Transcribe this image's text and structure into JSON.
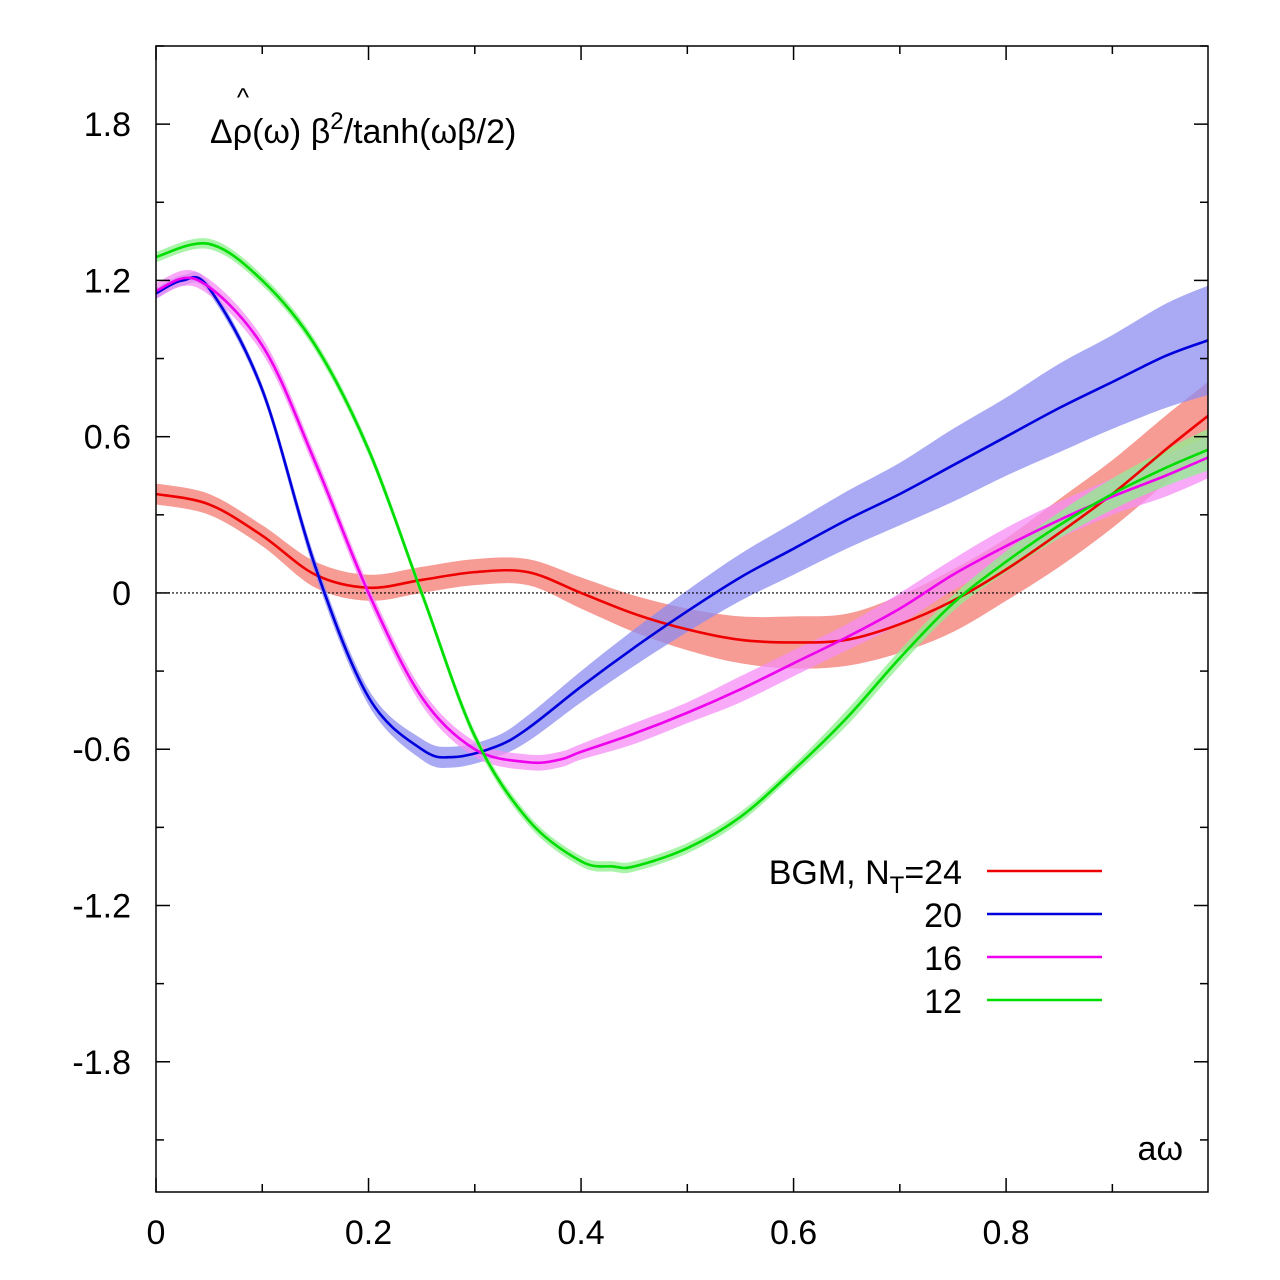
{
  "chart_data": {
    "type": "line",
    "title": "",
    "ylabel": {
      "prefix": "Δ",
      "hat": "^",
      "rho": "ρ",
      "mid": "(ω) β",
      "sup": "2",
      "suffix": "/tanh(ωβ/2)"
    },
    "xlabel": "aω",
    "xlim": [
      0,
      0.99
    ],
    "ylim": [
      -2.3,
      2.1
    ],
    "xticks": [
      0,
      0.2,
      0.4,
      0.6,
      0.8
    ],
    "xtick_labels": [
      "0",
      "0.2",
      "0.4",
      "0.6",
      "0.8"
    ],
    "xminor": [
      0.1,
      0.3,
      0.5,
      0.7,
      0.9
    ],
    "yticks": [
      1.8,
      1.2,
      0.6,
      0,
      -0.6,
      -1.2,
      -1.8
    ],
    "ytick_labels": [
      "1.8",
      "1.2",
      "0.6",
      "0",
      "-0.6",
      "-1.2",
      "-1.8"
    ],
    "yminor": [
      2.1,
      1.5,
      0.9,
      0.3,
      -0.3,
      -0.9,
      -1.5,
      -2.1
    ],
    "zero_line": true,
    "legend": {
      "placement": "bottom-right",
      "prefix": "BGM, N",
      "subscript": "T",
      "first_suffix": "=24"
    },
    "series": [
      {
        "name": "24",
        "label": "BGM, NT=24",
        "color": "#ee0000",
        "band_color": "#f47a72",
        "x": [
          0,
          0.05,
          0.1,
          0.15,
          0.2,
          0.25,
          0.3,
          0.35,
          0.4,
          0.45,
          0.5,
          0.55,
          0.6,
          0.65,
          0.7,
          0.75,
          0.8,
          0.85,
          0.9,
          0.95,
          0.99
        ],
        "y": [
          0.38,
          0.34,
          0.22,
          0.07,
          0.02,
          0.05,
          0.08,
          0.08,
          0.0,
          -0.08,
          -0.14,
          -0.18,
          -0.19,
          -0.18,
          -0.12,
          -0.03,
          0.09,
          0.23,
          0.38,
          0.55,
          0.68
        ],
        "err": [
          0.04,
          0.04,
          0.04,
          0.05,
          0.05,
          0.05,
          0.05,
          0.05,
          0.06,
          0.07,
          0.08,
          0.09,
          0.1,
          0.1,
          0.11,
          0.12,
          0.12,
          0.13,
          0.13,
          0.13,
          0.13
        ]
      },
      {
        "name": "20",
        "label": "20",
        "color": "#0000dd",
        "band_color": "#8c8cf0",
        "x": [
          0,
          0.025,
          0.05,
          0.1,
          0.15,
          0.2,
          0.25,
          0.28,
          0.32,
          0.35,
          0.4,
          0.45,
          0.5,
          0.55,
          0.6,
          0.65,
          0.7,
          0.75,
          0.8,
          0.85,
          0.9,
          0.95,
          0.99
        ],
        "y": [
          1.15,
          1.2,
          1.17,
          0.78,
          0.1,
          -0.4,
          -0.6,
          -0.63,
          -0.59,
          -0.52,
          -0.36,
          -0.21,
          -0.07,
          0.06,
          0.17,
          0.28,
          0.38,
          0.49,
          0.6,
          0.71,
          0.81,
          0.91,
          0.97
        ],
        "err": [
          0.02,
          0.02,
          0.02,
          0.02,
          0.03,
          0.03,
          0.04,
          0.04,
          0.04,
          0.05,
          0.06,
          0.07,
          0.08,
          0.09,
          0.1,
          0.11,
          0.12,
          0.14,
          0.15,
          0.17,
          0.18,
          0.2,
          0.21
        ]
      },
      {
        "name": "16",
        "label": "16",
        "color": "#ee00ee",
        "band_color": "#f58ef5",
        "x": [
          0,
          0.04,
          0.1,
          0.15,
          0.2,
          0.25,
          0.3,
          0.35,
          0.38,
          0.4,
          0.45,
          0.5,
          0.55,
          0.6,
          0.65,
          0.7,
          0.75,
          0.8,
          0.85,
          0.9,
          0.95,
          0.99
        ],
        "y": [
          1.16,
          1.2,
          0.95,
          0.5,
          0.0,
          -0.4,
          -0.6,
          -0.65,
          -0.64,
          -0.61,
          -0.54,
          -0.46,
          -0.37,
          -0.27,
          -0.17,
          -0.06,
          0.07,
          0.18,
          0.28,
          0.37,
          0.45,
          0.52
        ],
        "err": [
          0.03,
          0.03,
          0.03,
          0.03,
          0.03,
          0.03,
          0.03,
          0.03,
          0.03,
          0.03,
          0.04,
          0.04,
          0.05,
          0.05,
          0.05,
          0.06,
          0.06,
          0.07,
          0.07,
          0.07,
          0.08,
          0.08
        ]
      },
      {
        "name": "12",
        "label": "12",
        "color": "#00dd00",
        "band_color": "#8ef08e",
        "x": [
          0,
          0.05,
          0.1,
          0.15,
          0.2,
          0.25,
          0.3,
          0.35,
          0.4,
          0.43,
          0.45,
          0.5,
          0.55,
          0.6,
          0.65,
          0.7,
          0.75,
          0.8,
          0.85,
          0.9,
          0.95,
          0.99
        ],
        "y": [
          1.29,
          1.34,
          1.2,
          0.95,
          0.55,
          0.0,
          -0.55,
          -0.87,
          -1.03,
          -1.05,
          -1.05,
          -0.98,
          -0.86,
          -0.68,
          -0.48,
          -0.25,
          -0.04,
          0.12,
          0.26,
          0.38,
          0.48,
          0.55
        ],
        "err": [
          0.02,
          0.02,
          0.02,
          0.02,
          0.02,
          0.02,
          0.02,
          0.02,
          0.02,
          0.02,
          0.02,
          0.02,
          0.02,
          0.02,
          0.03,
          0.03,
          0.03,
          0.04,
          0.05,
          0.06,
          0.07,
          0.08
        ]
      }
    ]
  }
}
